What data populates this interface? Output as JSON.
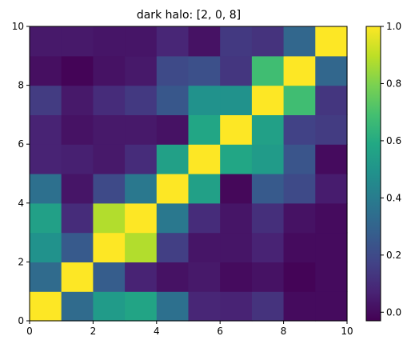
{
  "chart_data": {
    "type": "heatmap",
    "title": "dark halo: [2, 0, 8]",
    "colormap": "viridis",
    "xlim": [
      0,
      10
    ],
    "ylim": [
      0,
      10
    ],
    "x_ticks": [
      "0",
      "2",
      "4",
      "6",
      "8",
      "10"
    ],
    "y_ticks": [
      "0",
      "2",
      "4",
      "6",
      "8",
      "10"
    ],
    "colorbar": {
      "range": [
        -0.03,
        1.0
      ],
      "ticks": [
        0.0,
        0.2,
        0.4,
        0.6,
        0.8,
        1.0
      ],
      "tick_labels": [
        "0.0",
        "0.2",
        "0.4",
        "0.6",
        "0.8",
        "1.0"
      ]
    },
    "rows_bottom_to_top": [
      [
        1.0,
        0.33,
        0.53,
        0.57,
        0.35,
        0.08,
        0.07,
        0.12,
        0.0,
        0.0
      ],
      [
        0.33,
        1.0,
        0.27,
        0.07,
        0.02,
        0.04,
        0.0,
        0.02,
        -0.02,
        0.0
      ],
      [
        0.49,
        0.26,
        1.0,
        0.88,
        0.16,
        0.03,
        0.03,
        0.07,
        0.0,
        0.0
      ],
      [
        0.55,
        0.1,
        0.88,
        1.0,
        0.38,
        0.1,
        0.03,
        0.11,
        0.02,
        0.0
      ],
      [
        0.35,
        0.03,
        0.2,
        0.38,
        1.0,
        0.55,
        -0.01,
        0.26,
        0.2,
        0.05
      ],
      [
        0.07,
        0.06,
        0.04,
        0.1,
        0.55,
        1.0,
        0.58,
        0.53,
        0.24,
        0.0
      ],
      [
        0.07,
        0.02,
        0.04,
        0.04,
        0.02,
        0.58,
        1.0,
        0.55,
        0.17,
        0.15
      ],
      [
        0.15,
        0.04,
        0.1,
        0.14,
        0.25,
        0.49,
        0.49,
        1.0,
        0.68,
        0.13
      ],
      [
        0.01,
        -0.02,
        0.02,
        0.04,
        0.2,
        0.22,
        0.13,
        0.68,
        1.0,
        0.31
      ],
      [
        0.04,
        0.04,
        0.03,
        0.03,
        0.08,
        0.02,
        0.14,
        0.12,
        0.31,
        1.0
      ]
    ]
  }
}
